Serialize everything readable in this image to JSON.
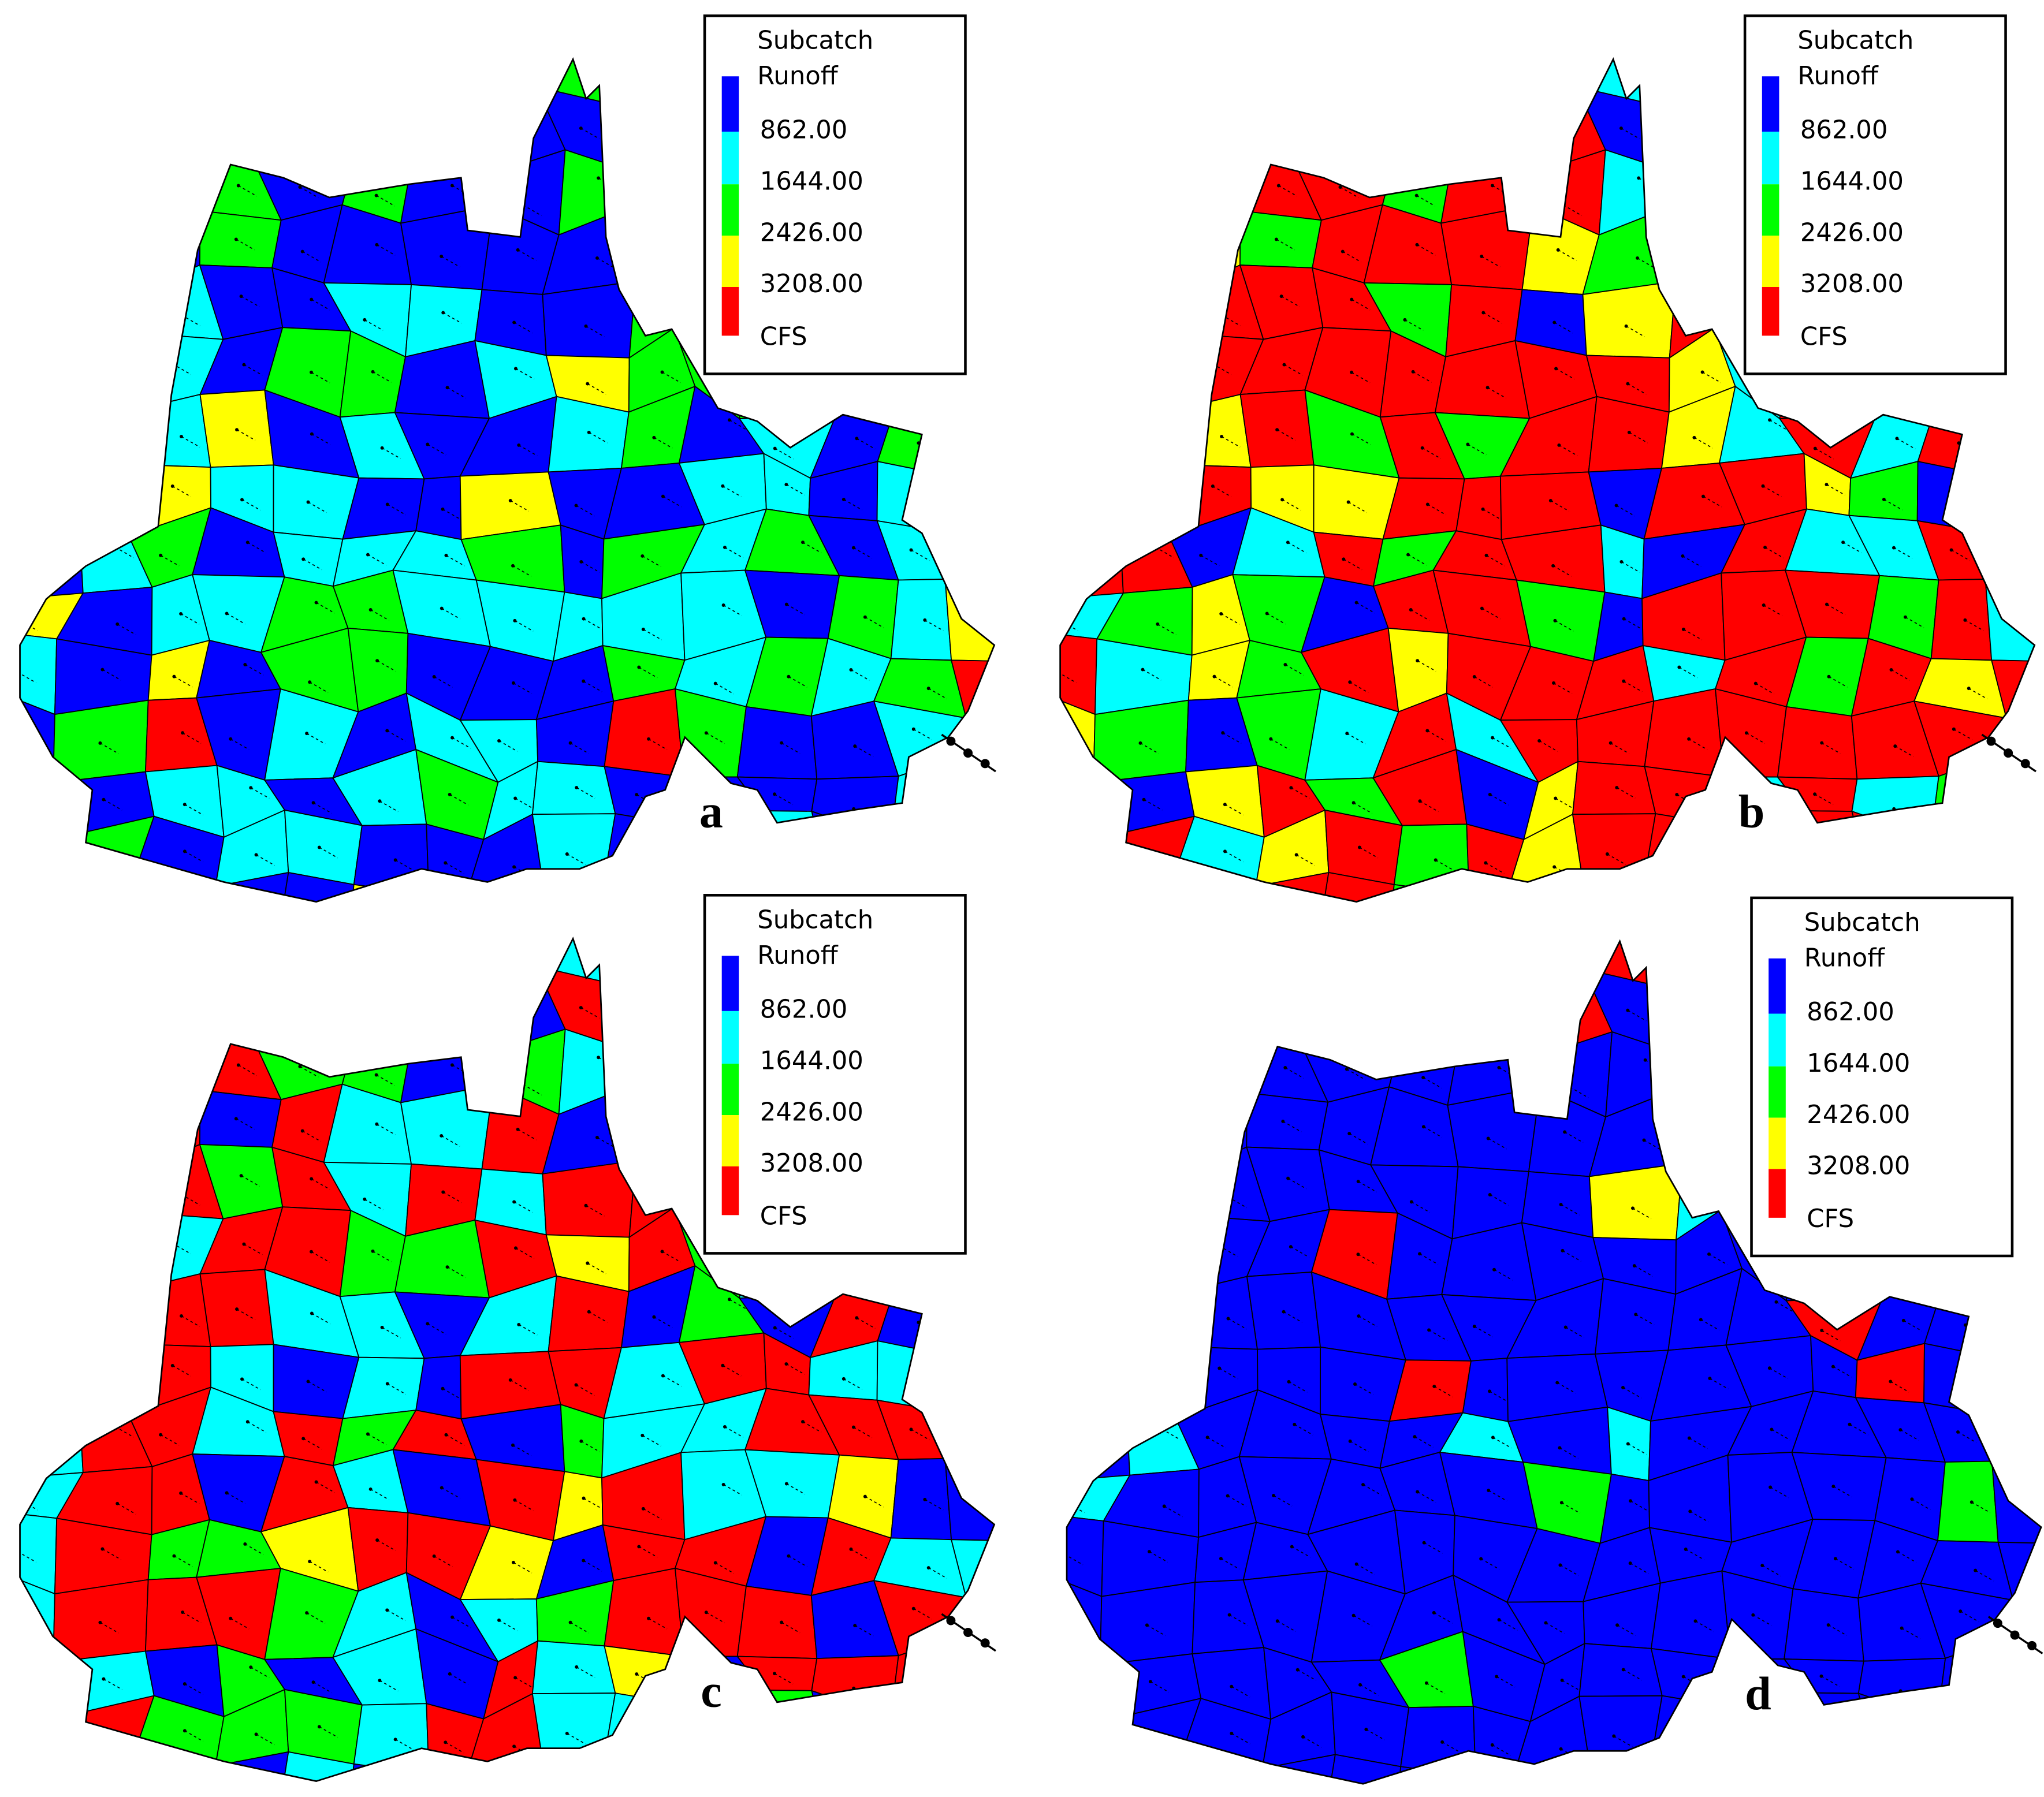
{
  "panels": [
    {
      "label": "a",
      "legend": {
        "title": [
          "Subcatch",
          "Runoff"
        ],
        "breaks": [
          "862.00",
          "1644.00",
          "2426.00",
          "3208.00"
        ],
        "unit": "CFS",
        "colors": [
          "#0000ff",
          "#00ffff",
          "#00ff00",
          "#ffff00",
          "#ff0000"
        ]
      }
    },
    {
      "label": "b",
      "legend": {
        "title": [
          "Subcatch",
          "Runoff"
        ],
        "breaks": [
          "862.00",
          "1644.00",
          "2426.00",
          "3208.00"
        ],
        "unit": "CFS",
        "colors": [
          "#0000ff",
          "#00ffff",
          "#00ff00",
          "#ffff00",
          "#ff0000"
        ]
      }
    },
    {
      "label": "c",
      "legend": {
        "title": [
          "Subcatch",
          "Runoff"
        ],
        "breaks": [
          "862.00",
          "1644.00",
          "2426.00",
          "3208.00"
        ],
        "unit": "CFS",
        "colors": [
          "#0000ff",
          "#00ffff",
          "#00ff00",
          "#ffff00",
          "#ff0000"
        ]
      }
    },
    {
      "label": "d",
      "legend": {
        "title": [
          "Subcatch",
          "Runoff"
        ],
        "breaks": [
          "862.00",
          "1644.00",
          "2426.00",
          "3208.00"
        ],
        "unit": "CFS",
        "colors": [
          "#0000ff",
          "#00ffff",
          "#00ff00",
          "#ffff00",
          "#ff0000"
        ]
      }
    }
  ]
}
